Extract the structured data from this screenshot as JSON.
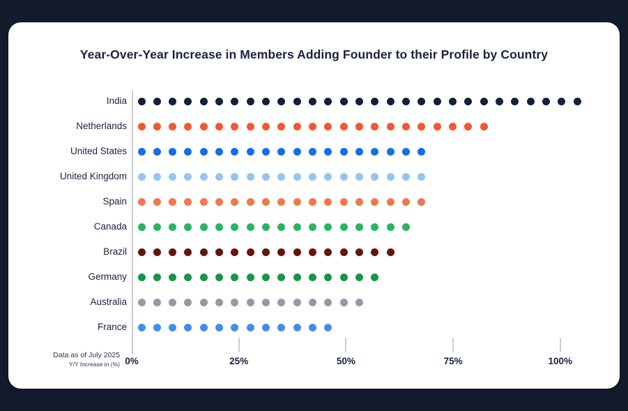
{
  "page": {
    "background_color": "#141B2D",
    "card_color": "#FFFFFF"
  },
  "chart": {
    "title": "Year-Over-Year Increase in Members Adding Founder to their Profile by Country",
    "footnote_line1": "Data as of July 2025",
    "footnote_line2": "Y/Y Increase in (%)"
  },
  "chart_data": {
    "type": "bar",
    "variant": "dot-strip",
    "title": "Year-Over-Year Increase in Members Adding Founder to their Profile by Country",
    "xlabel": "Y/Y Increase in (%)",
    "ylabel": "",
    "xlim": [
      0,
      110
    ],
    "grid": false,
    "legend": false,
    "x_ticks": [
      {
        "value": 0,
        "label": "0%"
      },
      {
        "value": 25,
        "label": "25%"
      },
      {
        "value": 50,
        "label": "50%"
      },
      {
        "value": 75,
        "label": "75%"
      },
      {
        "value": 100,
        "label": "100%"
      }
    ],
    "annotation": "Data as of July 2025",
    "categories": [
      "India",
      "Netherlands",
      "United States",
      "United Kingdom",
      "Spain",
      "Canada",
      "Brazil",
      "Germany",
      "Australia",
      "France"
    ],
    "series": [
      {
        "name": "Y/Y Increase (%)",
        "values": [
          104,
          82,
          68,
          67,
          68,
          64,
          61,
          57,
          53,
          46
        ]
      }
    ],
    "rows": [
      {
        "label": "India",
        "color": "#13203C",
        "dots": 29,
        "value_pct": 104
      },
      {
        "label": "Netherlands",
        "color": "#F1582B",
        "dots": 23,
        "value_pct": 82
      },
      {
        "label": "United States",
        "color": "#146EE6",
        "dots": 19,
        "value_pct": 68
      },
      {
        "label": "United Kingdom",
        "color": "#94C4F4",
        "dots": 19,
        "value_pct": 67
      },
      {
        "label": "Spain",
        "color": "#F0774F",
        "dots": 19,
        "value_pct": 68
      },
      {
        "label": "Canada",
        "color": "#27B561",
        "dots": 18,
        "value_pct": 64
      },
      {
        "label": "Brazil",
        "color": "#641509",
        "dots": 17,
        "value_pct": 61
      },
      {
        "label": "Germany",
        "color": "#139747",
        "dots": 16,
        "value_pct": 57
      },
      {
        "label": "Australia",
        "color": "#929AA5",
        "dots": 15,
        "value_pct": 53
      },
      {
        "label": "France",
        "color": "#3E8EF0",
        "dots": 13,
        "value_pct": 46
      }
    ]
  }
}
